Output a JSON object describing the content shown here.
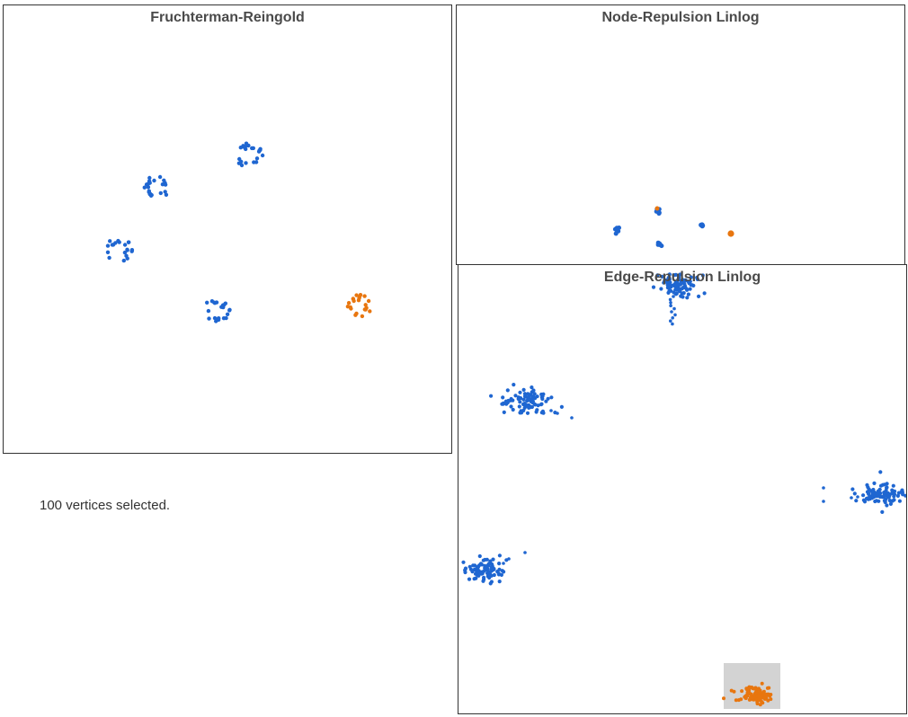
{
  "panels": {
    "fr": {
      "title": "Fruchterman-Reingold"
    },
    "nrl": {
      "title": "Node-Repulsion Linlog"
    },
    "erl": {
      "title": "Edge-Repulsion Linlog"
    }
  },
  "status": {
    "text": "100 vertices selected."
  },
  "colors": {
    "unselected": "#1f66d1",
    "selected": "#e8760f",
    "selection_box": "#d3d3d3"
  }
}
